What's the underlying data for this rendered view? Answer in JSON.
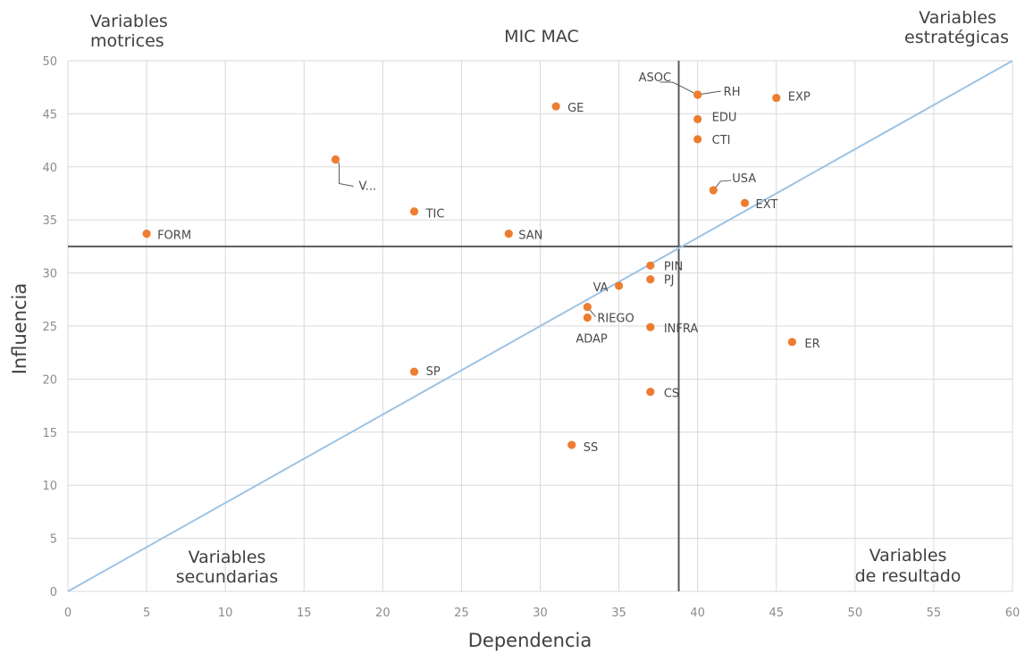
{
  "chart_data": {
    "type": "scatter",
    "title": "MIC MAC",
    "xlabel": "Dependencia",
    "ylabel": "Influencia",
    "xlim": [
      0,
      60
    ],
    "ylim": [
      0,
      50
    ],
    "x_ticks": [
      "0",
      "5",
      "10",
      "15",
      "20",
      "25",
      "30",
      "35",
      "40",
      "45",
      "50",
      "55",
      "60"
    ],
    "y_ticks": [
      "0",
      "5",
      "10",
      "15",
      "20",
      "25",
      "30",
      "35",
      "40",
      "45",
      "50"
    ],
    "grid": true,
    "point_color": "#ed7d31",
    "diagonal_color": "#9dc3e6",
    "divider_color": "#595959",
    "divider_x": 38.8,
    "divider_y": 32.5,
    "diagonal": [
      [
        0,
        0
      ],
      [
        60,
        50
      ]
    ],
    "quadrants": {
      "top_left": [
        "Variables",
        "motrices"
      ],
      "top_right": [
        "Variables",
        "estratégicas"
      ],
      "bottom_left": [
        "Variables",
        "secundarias"
      ],
      "bottom_right": [
        "Variables",
        "de resultado"
      ]
    },
    "points": [
      {
        "label": "FORM",
        "x": 5,
        "y": 33.7
      },
      {
        "label": "V...",
        "x": 17,
        "y": 40.7
      },
      {
        "label": "TIC",
        "x": 22,
        "y": 35.8
      },
      {
        "label": "SAN",
        "x": 28,
        "y": 33.7
      },
      {
        "label": "SP",
        "x": 22,
        "y": 20.7
      },
      {
        "label": "GE",
        "x": 31,
        "y": 45.7
      },
      {
        "label": "SS",
        "x": 32,
        "y": 13.8
      },
      {
        "label": "RIEGO",
        "x": 33,
        "y": 26.8
      },
      {
        "label": "ADAP",
        "x": 33,
        "y": 25.8
      },
      {
        "label": "VA",
        "x": 35,
        "y": 28.8
      },
      {
        "label": "PIN",
        "x": 37,
        "y": 30.7
      },
      {
        "label": "PJ",
        "x": 37,
        "y": 29.4
      },
      {
        "label": "INFRA",
        "x": 37,
        "y": 24.9
      },
      {
        "label": "CS",
        "x": 37,
        "y": 18.8
      },
      {
        "label": "RH",
        "x": 40,
        "y": 46.8
      },
      {
        "label": "ASOC",
        "x": 40,
        "y": 46.8
      },
      {
        "label": "EDU",
        "x": 40,
        "y": 44.5
      },
      {
        "label": "CTI",
        "x": 40,
        "y": 42.6
      },
      {
        "label": "USA",
        "x": 41,
        "y": 37.8
      },
      {
        "label": "EXT",
        "x": 43,
        "y": 36.6
      },
      {
        "label": "EXP",
        "x": 45,
        "y": 46.5
      },
      {
        "label": "ER",
        "x": 46,
        "y": 23.5
      }
    ]
  }
}
